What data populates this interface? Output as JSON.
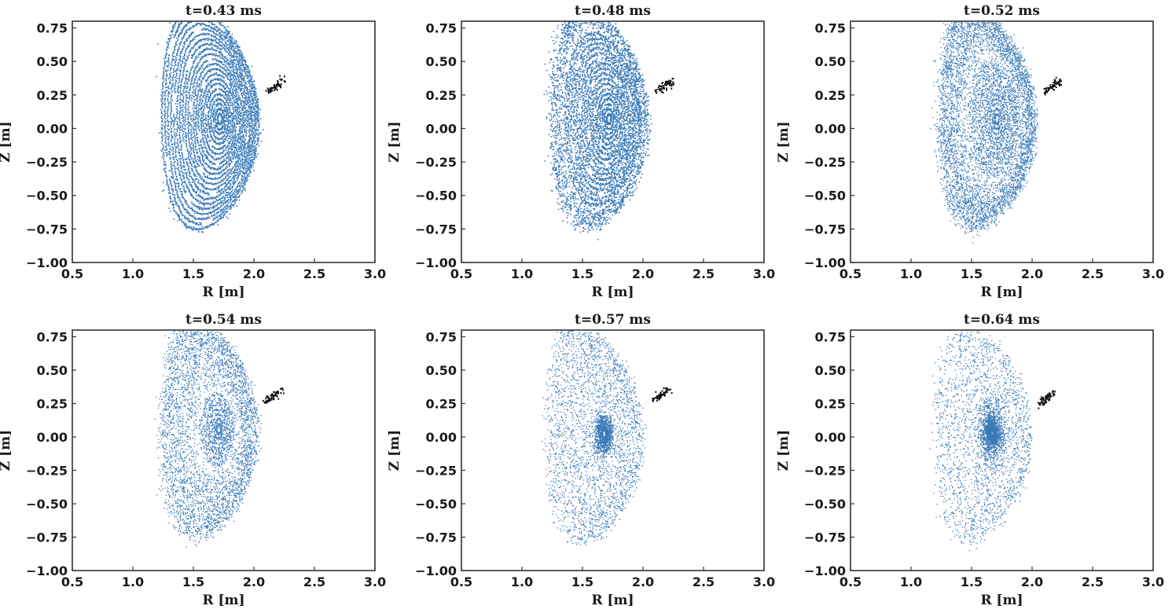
{
  "chart_data": [
    {
      "type": "scatter",
      "title": "t=0.43 ms",
      "xlabel": "R [m]",
      "ylabel": "Z [m]",
      "xlim": [
        0.5,
        3.0
      ],
      "ylim": [
        -1.0,
        0.8
      ],
      "xticks": [
        "0.5",
        "1.0",
        "1.5",
        "2.0",
        "2.5",
        "3.0"
      ],
      "yticks": [
        "0.75",
        "0.50",
        "0.25",
        "0.00",
        "−0.25",
        "−0.50",
        "−0.75",
        "−1.00"
      ],
      "series": [
        {
          "name": "field-line puncture points",
          "color": "#3a7ab8",
          "pattern": "nested flux surfaces",
          "core_R": 1.72,
          "core_Z": 0.07,
          "ordered_extent": 1.0,
          "chaos_level": 0.02,
          "density": 1.0
        },
        {
          "name": "injected cluster",
          "color": "#111111",
          "center_R": 2.18,
          "center_Z": 0.32
        }
      ]
    },
    {
      "type": "scatter",
      "title": "t=0.48 ms",
      "xlabel": "R [m]",
      "ylabel": "Z [m]",
      "xlim": [
        0.5,
        3.0
      ],
      "ylim": [
        -1.0,
        0.8
      ],
      "xticks": [
        "0.5",
        "1.0",
        "1.5",
        "2.0",
        "2.5",
        "3.0"
      ],
      "yticks": [
        "0.75",
        "0.50",
        "0.25",
        "0.00",
        "−0.25",
        "−0.50",
        "−0.75",
        "−1.00"
      ],
      "series": [
        {
          "name": "field-line puncture points",
          "color": "#3a7ab8",
          "pattern": "nested flux surfaces with stochastic edge",
          "core_R": 1.72,
          "core_Z": 0.07,
          "ordered_extent": 0.78,
          "chaos_level": 0.3,
          "density": 0.95
        },
        {
          "name": "injected cluster",
          "color": "#111111",
          "center_R": 2.18,
          "center_Z": 0.32
        }
      ]
    },
    {
      "type": "scatter",
      "title": "t=0.52 ms",
      "xlabel": "R [m]",
      "ylabel": "Z [m]",
      "xlim": [
        0.5,
        3.0
      ],
      "ylim": [
        -1.0,
        0.8
      ],
      "xticks": [
        "0.5",
        "1.0",
        "1.5",
        "2.0",
        "2.5",
        "3.0"
      ],
      "yticks": [
        "0.75",
        "0.50",
        "0.25",
        "0.00",
        "−0.25",
        "−0.50",
        "−0.75",
        "−1.00"
      ],
      "series": [
        {
          "name": "field-line puncture points",
          "color": "#3a7ab8",
          "pattern": "ordered core, stochastic outer region",
          "core_R": 1.71,
          "core_Z": 0.07,
          "ordered_extent": 0.5,
          "chaos_level": 1.0,
          "density": 0.75
        },
        {
          "name": "injected cluster",
          "color": "#111111",
          "center_R": 2.16,
          "center_Z": 0.31
        }
      ]
    },
    {
      "type": "scatter",
      "title": "t=0.54 ms",
      "xlabel": "R [m]",
      "ylabel": "Z [m]",
      "xlim": [
        0.5,
        3.0
      ],
      "ylim": [
        -1.0,
        0.8
      ],
      "xticks": [
        "0.5",
        "1.0",
        "1.5",
        "2.0",
        "2.5",
        "3.0"
      ],
      "yticks": [
        "0.75",
        "0.50",
        "0.25",
        "0.00",
        "−0.25",
        "−0.50",
        "−0.75",
        "−1.00"
      ],
      "series": [
        {
          "name": "field-line puncture points",
          "color": "#3a7ab8",
          "pattern": "small ordered core, stochastic outer region",
          "core_R": 1.71,
          "core_Z": 0.06,
          "ordered_extent": 0.32,
          "chaos_level": 1.0,
          "density": 0.6
        },
        {
          "name": "injected cluster",
          "color": "#111111",
          "center_R": 2.16,
          "center_Z": 0.31
        }
      ]
    },
    {
      "type": "scatter",
      "title": "t=0.57 ms",
      "xlabel": "R [m]",
      "ylabel": "Z [m]",
      "xlim": [
        0.5,
        3.0
      ],
      "ylim": [
        -1.0,
        0.8
      ],
      "xticks": [
        "0.5",
        "1.0",
        "1.5",
        "2.0",
        "2.5",
        "3.0"
      ],
      "yticks": [
        "0.75",
        "0.50",
        "0.25",
        "0.00",
        "−0.25",
        "−0.50",
        "−0.75",
        "−1.00"
      ],
      "series": [
        {
          "name": "field-line puncture points",
          "color": "#3a7ab8",
          "pattern": "dense core blob, sparse stochastic region",
          "core_R": 1.68,
          "core_Z": 0.02,
          "ordered_extent": 0.16,
          "chaos_level": 1.0,
          "density": 0.4
        },
        {
          "name": "injected cluster",
          "color": "#111111",
          "center_R": 2.14,
          "center_Z": 0.31
        }
      ]
    },
    {
      "type": "scatter",
      "title": "t=0.64 ms",
      "xlabel": "R [m]",
      "ylabel": "Z [m]",
      "xlim": [
        0.5,
        3.0
      ],
      "ylim": [
        -1.0,
        0.8
      ],
      "xticks": [
        "0.5",
        "1.0",
        "1.5",
        "2.0",
        "2.5",
        "3.0"
      ],
      "yticks": [
        "0.75",
        "0.50",
        "0.25",
        "0.00",
        "−0.25",
        "−0.50",
        "−0.75",
        "−1.00"
      ],
      "series": [
        {
          "name": "field-line puncture points",
          "color": "#3a7ab8",
          "pattern": "small core blob, sparse stochastic region",
          "core_R": 1.67,
          "core_Z": 0.03,
          "ordered_extent": 0.08,
          "chaos_level": 1.0,
          "density": 0.32
        },
        {
          "name": "injected cluster",
          "color": "#111111",
          "center_R": 2.12,
          "center_Z": 0.29
        }
      ]
    }
  ]
}
